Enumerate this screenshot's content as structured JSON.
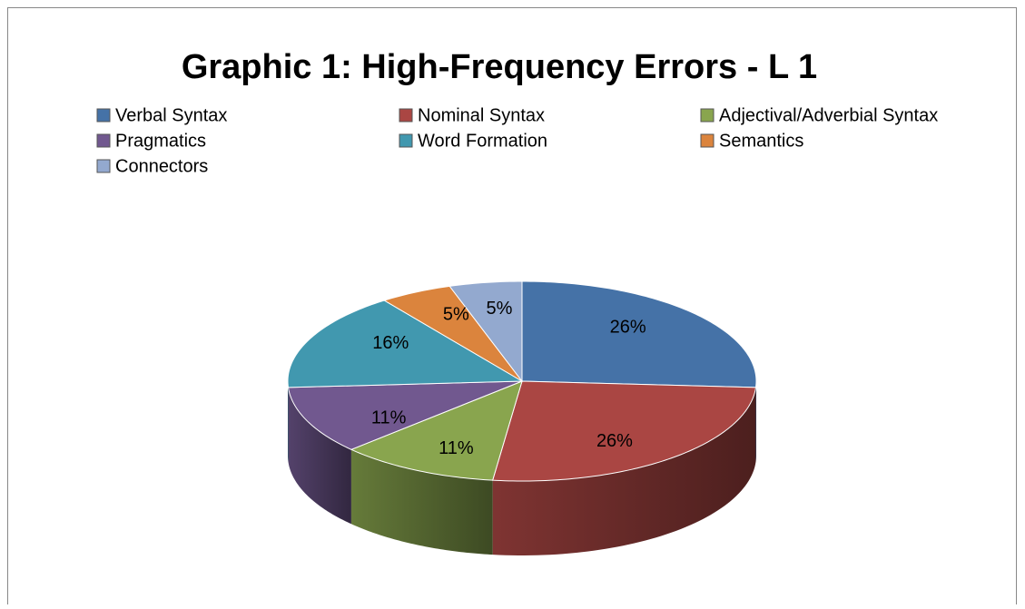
{
  "chart_data": {
    "type": "pie3d",
    "title": "Graphic 1: High-Frequency Errors - L 1",
    "categories": [
      "Verbal Syntax",
      "Nominal Syntax",
      "Adjectival/Adverbial Syntax",
      "Pragmatics",
      "Word Formation",
      "Semantics",
      "Connectors"
    ],
    "values": [
      26,
      26,
      11,
      11,
      16,
      5,
      5
    ],
    "value_labels": [
      "26%",
      "26%",
      "11%",
      "11%",
      "16%",
      "5%",
      "5%"
    ],
    "colors": [
      "#4572a7",
      "#aa4643",
      "#89a54e",
      "#71588f",
      "#4198af",
      "#db843d",
      "#93a9cf"
    ],
    "legend": "top"
  }
}
